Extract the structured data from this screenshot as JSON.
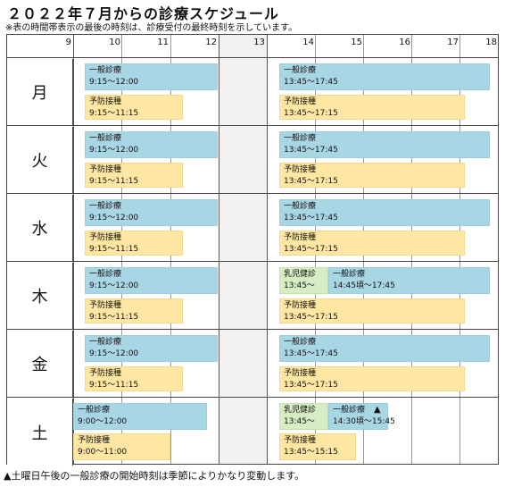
{
  "page": {
    "title": "２０２２年７月からの診療スケジュール",
    "subtitle": "※表の時間帯表示の最後の時刻は、診療受付の最終時刻を示しています。",
    "footnote": "▲土曜日午後の一般診療の開始時刻は季節によりかなり変動します。"
  },
  "header": {
    "hours": [
      "9",
      "10",
      "11",
      "12",
      "13",
      "14",
      "15",
      "16",
      "17",
      "18"
    ]
  },
  "days": [
    {
      "label": "月",
      "general_morning": {
        "label": "一般診療",
        "time": "9:15～12:00"
      },
      "prevent_morning": {
        "label": "予防接種",
        "time": "9:15～11:15"
      },
      "general_afternoon": {
        "label": "一般診療",
        "time": "13:45～17:45"
      },
      "prevent_afternoon": {
        "label": "予防接種",
        "time": "13:45～17:15"
      }
    },
    {
      "label": "火",
      "general_morning": {
        "label": "一般診療",
        "time": "9:15～12:00"
      },
      "prevent_morning": {
        "label": "予防接種",
        "time": "9:15～11:15"
      },
      "general_afternoon": {
        "label": "一般診療",
        "time": "13:45～17:45"
      },
      "prevent_afternoon": {
        "label": "予防接種",
        "time": "13:45～17:15"
      }
    },
    {
      "label": "水",
      "general_morning": {
        "label": "一般診療",
        "time": "9:15～12:00"
      },
      "prevent_morning": {
        "label": "予防接種",
        "time": "9:15～11:15"
      },
      "general_afternoon": {
        "label": "一般診療",
        "time": "13:45～17:45"
      },
      "prevent_afternoon": {
        "label": "予防接種",
        "time": "13:45～17:15"
      }
    },
    {
      "label": "木",
      "general_morning": {
        "label": "一般診療",
        "time": "9:15～12:00"
      },
      "prevent_morning": {
        "label": "予防接種",
        "time": "9:15～11:15"
      },
      "infant_afternoon": {
        "label": "乳児健診",
        "time": "13:45～"
      },
      "general_afternoon": {
        "label": "一般診療",
        "time": "14:45頃～17:45"
      },
      "prevent_afternoon": {
        "label": "予防接種",
        "time": "13:45～17:15"
      }
    },
    {
      "label": "金",
      "general_morning": {
        "label": "一般診療",
        "time": "9:15～12:00"
      },
      "prevent_morning": {
        "label": "予防接種",
        "time": "9:15～11:15"
      },
      "general_afternoon": {
        "label": "一般診療",
        "time": "13:45～17:45"
      },
      "prevent_afternoon": {
        "label": "予防接種",
        "time": "13:45～17:15"
      }
    },
    {
      "label": "土",
      "general_morning": {
        "label": "一般診療",
        "time": "9:00～12:00"
      },
      "prevent_morning": {
        "label": "予防接種",
        "time": "9:00～11:00"
      },
      "infant_afternoon": {
        "label": "乳児健診",
        "time": "13:45～"
      },
      "general_afternoon": {
        "label": "一般診療",
        "time": "14:30頃～15:45",
        "mark": "▲"
      },
      "prevent_afternoon": {
        "label": "予防接種",
        "time": "13:45～15:15"
      }
    }
  ]
}
